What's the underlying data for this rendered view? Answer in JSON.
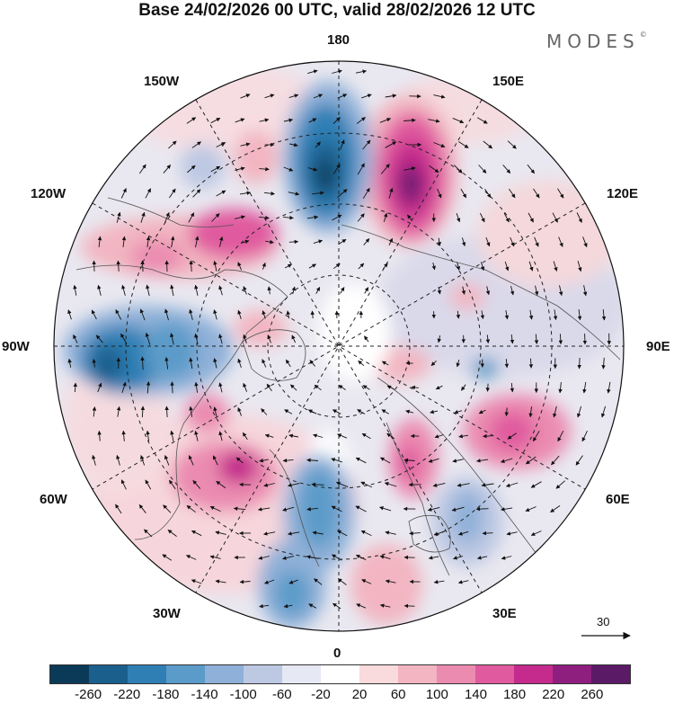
{
  "title": "Base 24/02/2026 00 UTC, valid 28/02/2026 12 UTC",
  "logo": "MODES",
  "logo_mark": "©",
  "longitude_labels": {
    "deg180": "180",
    "w150": "150W",
    "e150": "150E",
    "w120": "120W",
    "e120": "120E",
    "w90": "90W",
    "e90": "90E",
    "w60": "60W",
    "e60": "60E",
    "w30": "30W",
    "e30": "30E",
    "deg0": "0"
  },
  "wind_scale": {
    "value": "30"
  },
  "colorbar": {
    "colors": [
      "#0b3a58",
      "#1b5f8d",
      "#2f7fb5",
      "#5b9bc9",
      "#8fb0d8",
      "#bdc8e3",
      "#e6e8f3",
      "#ffffff",
      "#f9dadd",
      "#f2b5c1",
      "#eb8bb0",
      "#e05a9f",
      "#c42b8c",
      "#8f1f7f",
      "#5a1a66"
    ],
    "labels": [
      "-260",
      "-220",
      "-180",
      "-140",
      "-100",
      "-60",
      "-20",
      "20",
      "60",
      "100",
      "140",
      "180",
      "220",
      "260"
    ]
  }
}
